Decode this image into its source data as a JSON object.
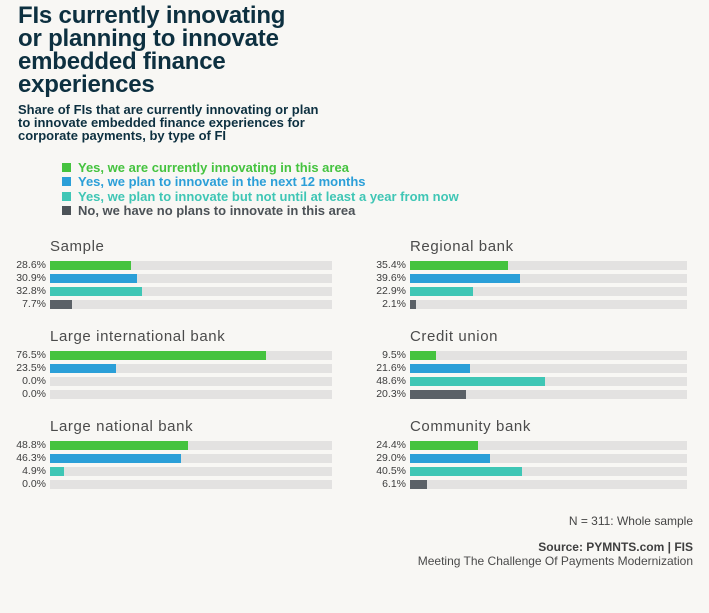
{
  "page": {
    "background_color": "#f8f7f4"
  },
  "header": {
    "title": "FIs currently innovating\nor planning to innovate\nembedded finance\nexperiences",
    "subtitle": "Share of FIs that are currently innovating or plan\nto innovate embedded finance experiences for\ncorporate payments, by type of FI",
    "title_color": "#0d3040"
  },
  "legend": {
    "items": [
      {
        "label": "Yes, we are currently innovating in this area",
        "color": "#45c33f"
      },
      {
        "label": "Yes, we plan to innovate in the next 12 months",
        "color": "#2b9fd8"
      },
      {
        "label": "Yes, we plan to innovate but not until at least a year from now",
        "color": "#3fc6b5"
      },
      {
        "label": "No, we have no plans to innovate in this area",
        "color": "#4c5257"
      }
    ]
  },
  "chart_data": {
    "type": "bar",
    "orientation": "horizontal",
    "unit": "%",
    "xlim": [
      0,
      100
    ],
    "grid": false,
    "legend_position": "top-left",
    "track_color": "#e3e2e1",
    "series_labels": [
      "Yes, we are currently innovating in this area",
      "Yes, we plan to innovate in the next 12 months",
      "Yes, we plan to innovate but not until at least a year from now",
      "No, we have no plans to innovate in this area"
    ],
    "series_colors": [
      "#45c33f",
      "#2b9fd8",
      "#3fc6b5",
      "#5b6167"
    ],
    "charts": [
      {
        "title": "Sample",
        "values": [
          28.6,
          30.9,
          32.8,
          7.7
        ]
      },
      {
        "title": "Regional bank",
        "values": [
          35.4,
          39.6,
          22.9,
          2.1
        ]
      },
      {
        "title": "Large international bank",
        "values": [
          76.5,
          23.5,
          0.0,
          0.0
        ]
      },
      {
        "title": "Credit union",
        "values": [
          9.5,
          21.6,
          48.6,
          20.3
        ]
      },
      {
        "title": "Large national bank",
        "values": [
          48.8,
          46.3,
          4.9,
          0.0
        ]
      },
      {
        "title": "Community bank",
        "values": [
          24.4,
          29.0,
          40.5,
          6.1
        ]
      }
    ]
  },
  "footer": {
    "note": "N = 311: Whole sample",
    "source": "Source: PYMNTS.com | FIS",
    "credit": "Meeting The Challenge Of Payments Modernization"
  }
}
